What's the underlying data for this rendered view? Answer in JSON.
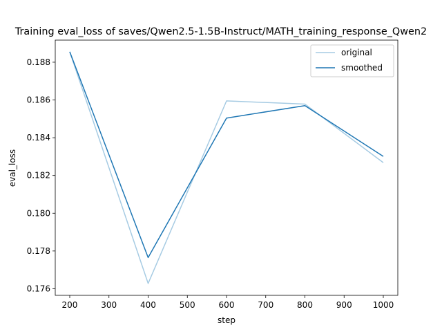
{
  "chart_data": {
    "type": "line",
    "title": "Training eval_loss of saves/Qwen2.5-1.5B-Instruct/MATH_training_response_Qwen2",
    "xlabel": "step",
    "ylabel": "eval_loss",
    "xlim": [
      163,
      1037
    ],
    "ylim": [
      0.17565,
      0.18917
    ],
    "xticks": [
      200,
      300,
      400,
      500,
      600,
      700,
      800,
      900,
      1000
    ],
    "yticks": [
      0.176,
      0.178,
      0.18,
      0.182,
      0.184,
      0.186,
      0.188
    ],
    "ytick_labels": [
      "0.176",
      "0.178",
      "0.180",
      "0.182",
      "0.184",
      "0.186",
      "0.188"
    ],
    "grid": false,
    "legend_placement": "top-right",
    "series": [
      {
        "name": "original",
        "color": "#a6cbe3",
        "x": [
          200,
          400,
          600,
          800,
          1000
        ],
        "y": [
          0.18855,
          0.17628,
          0.18595,
          0.18578,
          0.18268
        ]
      },
      {
        "name": "smoothed",
        "color": "#1f77b4",
        "x": [
          200,
          400,
          600,
          800,
          1000
        ],
        "y": [
          0.18855,
          0.17765,
          0.18504,
          0.1857,
          0.18301
        ]
      }
    ]
  }
}
